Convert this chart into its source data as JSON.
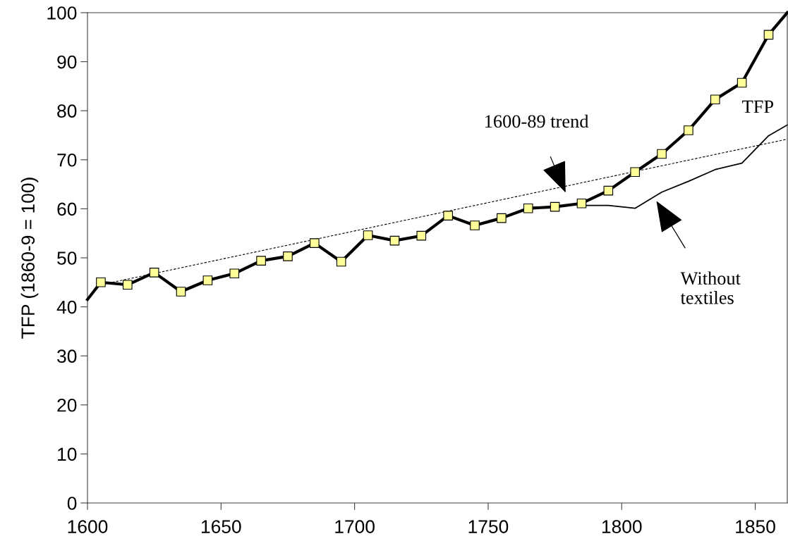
{
  "chart_data": {
    "type": "line",
    "ylabel": "TFP (1860-9 = 100)",
    "xlim": [
      1600,
      1862
    ],
    "xticks": [
      1600,
      1650,
      1700,
      1750,
      1800,
      1850
    ],
    "ylim": [
      0,
      100
    ],
    "yticks": [
      0,
      10,
      20,
      30,
      40,
      50,
      60,
      70,
      80,
      90,
      100
    ],
    "grid": false,
    "legend": false,
    "series": [
      {
        "name": "1600-89 trend",
        "color": "#000000",
        "line_style": "dashed",
        "marker": "none",
        "x": [
          1605,
          1862
        ],
        "values": [
          44.5,
          74.2
        ]
      },
      {
        "name": "Without textiles",
        "color": "#000000",
        "line_style": "solid",
        "marker": "none",
        "x": [
          1785,
          1795,
          1805,
          1815,
          1825,
          1835,
          1845,
          1855,
          1862
        ],
        "values": [
          60.7,
          60.7,
          60.1,
          63.4,
          65.6,
          68.0,
          69.3,
          74.9,
          77.1
        ]
      },
      {
        "name": "TFP",
        "color": "#000000",
        "line_style": "solid",
        "marker": "square",
        "x": [
          1600,
          1605,
          1615,
          1625,
          1635,
          1645,
          1655,
          1665,
          1675,
          1685,
          1695,
          1705,
          1715,
          1725,
          1735,
          1745,
          1755,
          1765,
          1775,
          1785,
          1795,
          1805,
          1815,
          1825,
          1835,
          1845,
          1855,
          1862
        ],
        "values": [
          41.5,
          45.0,
          44.5,
          47.0,
          43.1,
          45.4,
          46.8,
          49.4,
          50.3,
          53.0,
          49.2,
          54.6,
          53.5,
          54.5,
          58.6,
          56.6,
          58.1,
          60.1,
          60.4,
          61.1,
          63.7,
          67.5,
          71.2,
          76.0,
          82.3,
          85.7,
          95.5,
          100
        ]
      }
    ]
  }
}
